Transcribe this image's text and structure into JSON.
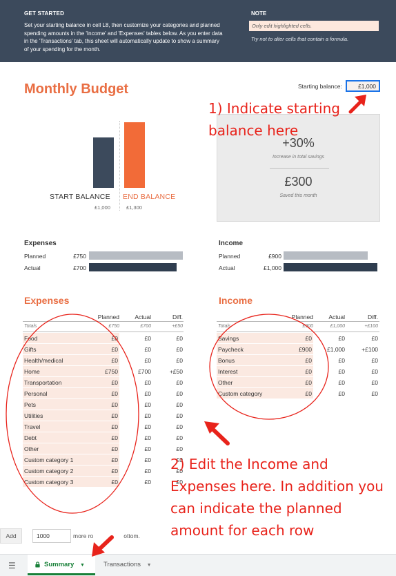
{
  "banner": {
    "get_started_title": "GET STARTED",
    "get_started_body": "Set your starting balance in cell L8, then customize your categories and planned spending amounts in the 'Income' and 'Expenses' tables below. As you enter data in the 'Transactions' tab, this sheet will automatically update to show a summary of your spending for the month.",
    "note_title": "NOTE",
    "note_highlight": "Only edit highlighted cells.",
    "note_text": "Try not to alter cells that contain a formula."
  },
  "header": {
    "title": "Monthly Budget",
    "starting_balance_label": "Starting balance:",
    "starting_balance_value": "£1,000"
  },
  "balances": {
    "start_label": "START BALANCE",
    "start_value": "£1,000",
    "start_amount": 1000,
    "end_label": "END BALANCE",
    "end_value": "£1,300",
    "end_amount": 1300,
    "colors": {
      "start": "#3c4a5c",
      "end": "#f26b38"
    }
  },
  "summary_box": {
    "savings_pct": "+30%",
    "savings_caption": "Increase in total savings",
    "saved_amount": "£300",
    "saved_caption": "Saved this month"
  },
  "expenses_mini": {
    "title": "Expenses",
    "planned_label": "Planned",
    "planned_value": "£750",
    "planned_amount": 750,
    "actual_label": "Actual",
    "actual_value": "£700",
    "actual_amount": 700
  },
  "income_mini": {
    "title": "Income",
    "planned_label": "Planned",
    "planned_value": "£900",
    "planned_amount": 900,
    "actual_label": "Actual",
    "actual_value": "£1,000",
    "actual_amount": 1000
  },
  "expenses_table": {
    "title": "Expenses",
    "headers": {
      "planned": "Planned",
      "actual": "Actual",
      "diff": "Diff."
    },
    "totals": {
      "label": "Totals",
      "planned": "£750",
      "actual": "£700",
      "diff": "+£50"
    },
    "rows": [
      {
        "category": "Food",
        "planned": "£0",
        "actual": "£0",
        "diff": "£0"
      },
      {
        "category": "Gifts",
        "planned": "£0",
        "actual": "£0",
        "diff": "£0"
      },
      {
        "category": "Health/medical",
        "planned": "£0",
        "actual": "£0",
        "diff": "£0"
      },
      {
        "category": "Home",
        "planned": "£750",
        "actual": "£700",
        "diff": "+£50"
      },
      {
        "category": "Transportation",
        "planned": "£0",
        "actual": "£0",
        "diff": "£0"
      },
      {
        "category": "Personal",
        "planned": "£0",
        "actual": "£0",
        "diff": "£0"
      },
      {
        "category": "Pets",
        "planned": "£0",
        "actual": "£0",
        "diff": "£0"
      },
      {
        "category": "Utilities",
        "planned": "£0",
        "actual": "£0",
        "diff": "£0"
      },
      {
        "category": "Travel",
        "planned": "£0",
        "actual": "£0",
        "diff": "£0"
      },
      {
        "category": "Debt",
        "planned": "£0",
        "actual": "£0",
        "diff": "£0"
      },
      {
        "category": "Other",
        "planned": "£0",
        "actual": "£0",
        "diff": "£0"
      },
      {
        "category": "Custom category 1",
        "planned": "£0",
        "actual": "£0",
        "diff": "£0"
      },
      {
        "category": "Custom category 2",
        "planned": "£0",
        "actual": "£0",
        "diff": "£0"
      },
      {
        "category": "Custom category 3",
        "planned": "£0",
        "actual": "£0",
        "diff": "£0"
      }
    ]
  },
  "income_table": {
    "title": "Income",
    "headers": {
      "planned": "Planned",
      "actual": "Actual",
      "diff": "Diff."
    },
    "totals": {
      "label": "Totals",
      "planned": "£900",
      "actual": "£1,000",
      "diff": "+£100"
    },
    "rows": [
      {
        "category": "Savings",
        "planned": "£0",
        "actual": "£0",
        "diff": "£0"
      },
      {
        "category": "Paycheck",
        "planned": "£900",
        "actual": "£1,000",
        "diff": "+£100"
      },
      {
        "category": "Bonus",
        "planned": "£0",
        "actual": "£0",
        "diff": "£0"
      },
      {
        "category": "Interest",
        "planned": "£0",
        "actual": "£0",
        "diff": "£0"
      },
      {
        "category": "Other",
        "planned": "£0",
        "actual": "£0",
        "diff": "£0"
      },
      {
        "category": "Custom category",
        "planned": "£0",
        "actual": "£0",
        "diff": "£0"
      }
    ]
  },
  "bottom": {
    "add_label": "Add",
    "add_count": "1000",
    "add_suffix": "more ro",
    "add_suffix_end": "ottom."
  },
  "tabs": {
    "menu_icon": "hamburger-icon",
    "summary_label": "Summary",
    "transactions_label": "Transactions"
  },
  "annotations": {
    "note1": "1) Indicate starting balance here",
    "note2": "2) Edit the Income and Expenses here. In addition you can indicate   the planned amount for each row",
    "color": "#e8231b"
  },
  "colors": {
    "accent": "#e96e43",
    "banner": "#3c4a5c",
    "highlight": "#fbe9e1",
    "active_tab": "#188038"
  }
}
